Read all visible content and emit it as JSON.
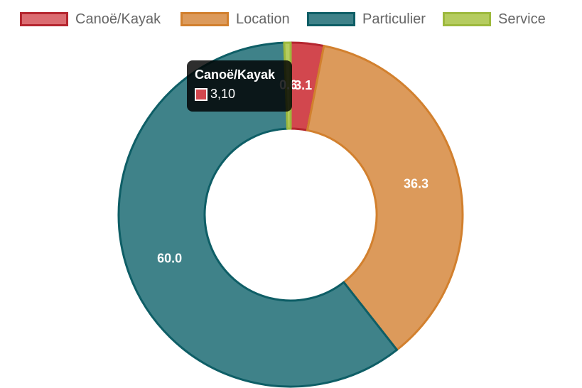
{
  "chart_data": {
    "type": "doughnut",
    "categories": [
      "Canoë/Kayak",
      "Location",
      "Particulier",
      "Service"
    ],
    "values": [
      3.1,
      36.3,
      60.0,
      0.6
    ],
    "labels": [
      "3.1",
      "36.3",
      "60.0",
      "0.6"
    ],
    "colors": {
      "fill": [
        "#d2474e",
        "#dc9a5b",
        "#3f8289",
        "#b5cc5f"
      ],
      "border": [
        "#b5262f",
        "#d2802e",
        "#0e5e66",
        "#9db93d"
      ]
    },
    "legend_position": "top"
  },
  "legend": {
    "items": [
      {
        "label": "Canoë/Kayak"
      },
      {
        "label": "Location"
      },
      {
        "label": "Particulier"
      },
      {
        "label": "Service"
      }
    ]
  },
  "tooltip": {
    "title": "Canoë/Kayak",
    "value": "3,10"
  }
}
